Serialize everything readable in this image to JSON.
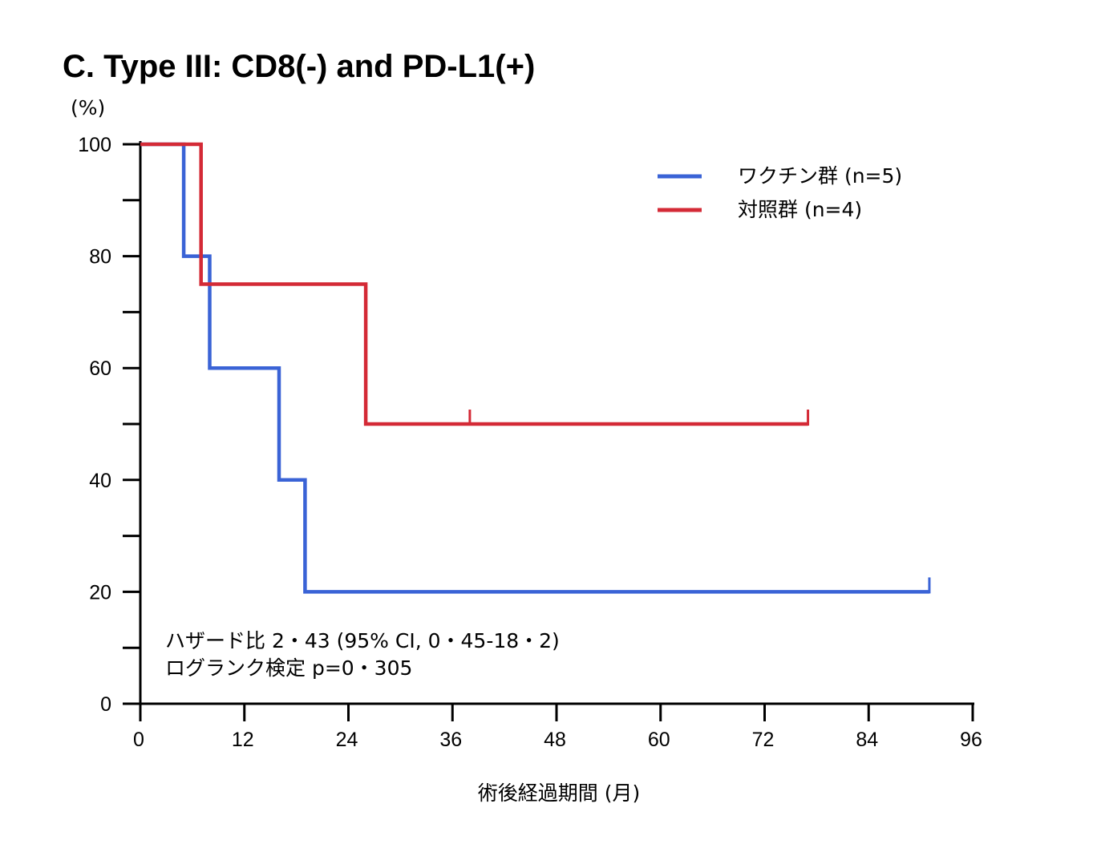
{
  "chart_data": {
    "type": "line",
    "title": "C. Type III: CD8(-) and PD-L1(+)",
    "ylabel": "(%)",
    "xlabel": "術後経過期間 (月)",
    "xlim": [
      0,
      96
    ],
    "ylim": [
      0,
      100
    ],
    "x_ticks": [
      0,
      12,
      24,
      36,
      48,
      60,
      72,
      84,
      96
    ],
    "y_ticks": [
      0,
      20,
      40,
      60,
      80,
      100
    ],
    "y_minor_ticks": [
      10,
      30,
      50,
      70,
      90
    ],
    "grid": false,
    "legend_position": "top-right",
    "series": [
      {
        "name": "ワクチン群 (n=5)",
        "color": "#3a63d6",
        "steps": [
          [
            0,
            100
          ],
          [
            5,
            100
          ],
          [
            5,
            80
          ],
          [
            8,
            80
          ],
          [
            8,
            60
          ],
          [
            16,
            60
          ],
          [
            16,
            40
          ],
          [
            19,
            40
          ],
          [
            19,
            20
          ],
          [
            91,
            20
          ]
        ],
        "censored_x": [
          91
        ]
      },
      {
        "name": "対照群 (n=4)",
        "color": "#d42a36",
        "steps": [
          [
            0,
            100
          ],
          [
            7,
            100
          ],
          [
            7,
            75
          ],
          [
            26,
            75
          ],
          [
            26,
            50
          ],
          [
            77,
            50
          ]
        ],
        "censored_x": [
          38,
          77
        ]
      }
    ],
    "annotations": [
      "ハザード比 2・43 (95% CI, 0・45-18・2)",
      "ログランク検定 p=0・305"
    ]
  }
}
